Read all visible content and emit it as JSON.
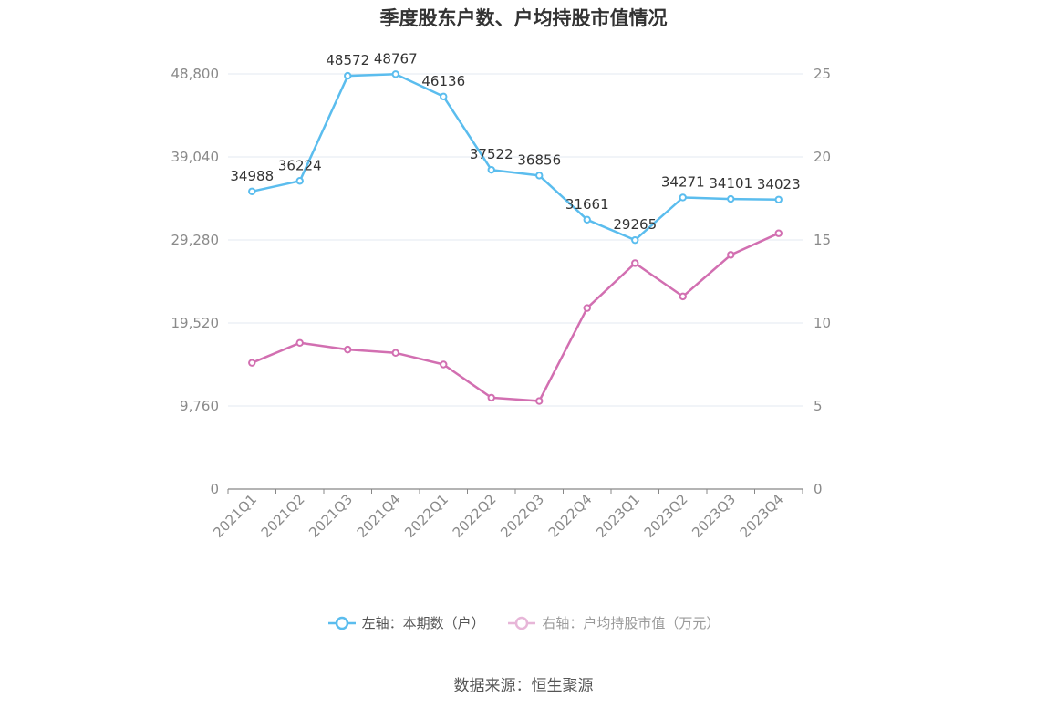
{
  "chart_data": {
    "type": "line",
    "title": "季度股东户数、户均持股市值情况",
    "categories": [
      "2021Q1",
      "2021Q2",
      "2021Q3",
      "2021Q4",
      "2022Q1",
      "2022Q2",
      "2022Q3",
      "2022Q4",
      "2023Q1",
      "2023Q2",
      "2023Q3",
      "2023Q4"
    ],
    "series": [
      {
        "name": "左轴：本期数（户）",
        "axis": "left",
        "color": "#5bbdee",
        "values": [
          34988,
          36224,
          48572,
          48767,
          46136,
          37522,
          36856,
          31661,
          29265,
          34271,
          34101,
          34023
        ],
        "data_labels": [
          "34988",
          "36224",
          "48572",
          "48767",
          "46136",
          "37522",
          "36856",
          "31661",
          "29265",
          "34271",
          "34101",
          "34023"
        ]
      },
      {
        "name": "右轴：户均持股市值（万元）",
        "axis": "right",
        "color": "#d26fb1",
        "values": [
          7.6,
          8.8,
          8.4,
          8.2,
          7.5,
          5.5,
          5.3,
          10.9,
          13.6,
          11.6,
          14.1,
          15.4
        ]
      }
    ],
    "y_left": {
      "ylim": [
        0,
        48800
      ],
      "ticks": [
        "0",
        "9,760",
        "19,520",
        "29,280",
        "39,040",
        "48,800"
      ]
    },
    "y_right": {
      "ylim": [
        0,
        25
      ],
      "ticks": [
        "0",
        "5",
        "10",
        "15",
        "20",
        "25"
      ]
    },
    "grid": true,
    "legend_position": "bottom"
  },
  "source": "数据来源：恒生聚源"
}
